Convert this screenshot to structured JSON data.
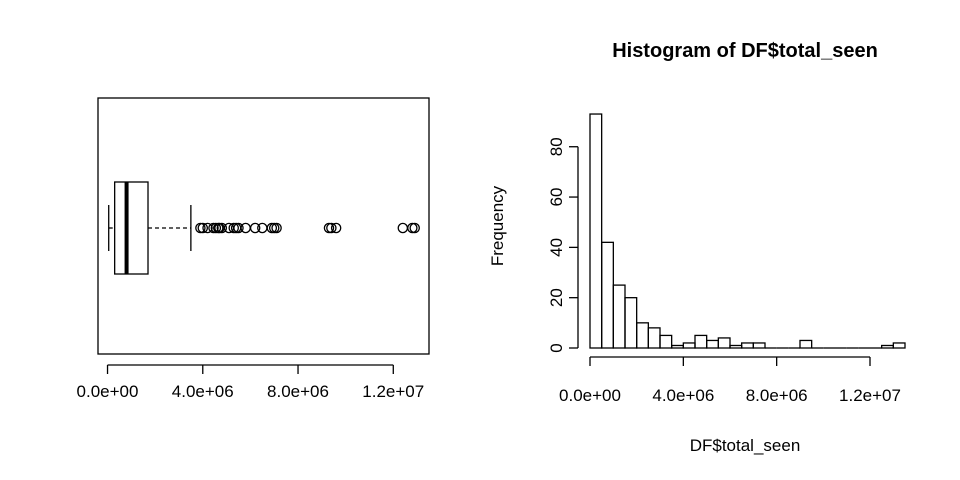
{
  "chart_data": [
    {
      "type": "boxplot",
      "orientation": "horizontal",
      "title": "",
      "xlabel": "",
      "ylabel": "",
      "xlim": [
        -400000,
        13500000
      ],
      "x_ticks": [
        0,
        4000000,
        8000000,
        12000000
      ],
      "x_tick_labels": [
        "0.0e+00",
        "4.0e+06",
        "8.0e+06",
        "1.2e+07"
      ],
      "stats": {
        "whisker_low": 50000,
        "q1": 300000,
        "median": 800000,
        "q3": 1700000,
        "whisker_high": 3500000
      },
      "outliers": [
        3900000,
        4000000,
        4200000,
        4450000,
        4550000,
        4650000,
        4700000,
        4800000,
        5100000,
        5300000,
        5400000,
        5500000,
        5800000,
        6200000,
        6500000,
        6900000,
        7000000,
        7100000,
        9300000,
        9400000,
        9600000,
        12400000,
        12800000,
        12900000
      ]
    },
    {
      "type": "histogram",
      "title": "Histogram of DF$total_seen",
      "xlabel": "DF$total_seen",
      "ylabel": "Frequency",
      "xlim": [
        0,
        13200000
      ],
      "ylim": [
        0,
        95
      ],
      "x_ticks": [
        0,
        4000000,
        8000000,
        12000000
      ],
      "x_tick_labels": [
        "0.0e+00",
        "4.0e+06",
        "8.0e+06",
        "1.2e+07"
      ],
      "y_ticks": [
        0,
        20,
        40,
        60,
        80
      ],
      "y_tick_labels": [
        "0",
        "20",
        "40",
        "60",
        "80"
      ],
      "bin_width": 500000,
      "bin_start": 0,
      "counts": [
        93,
        42,
        25,
        20,
        10,
        8,
        5,
        1,
        2,
        5,
        3,
        4,
        1,
        2,
        2,
        0,
        0,
        0,
        3,
        0,
        0,
        0,
        0,
        0,
        0,
        1,
        2
      ]
    }
  ]
}
